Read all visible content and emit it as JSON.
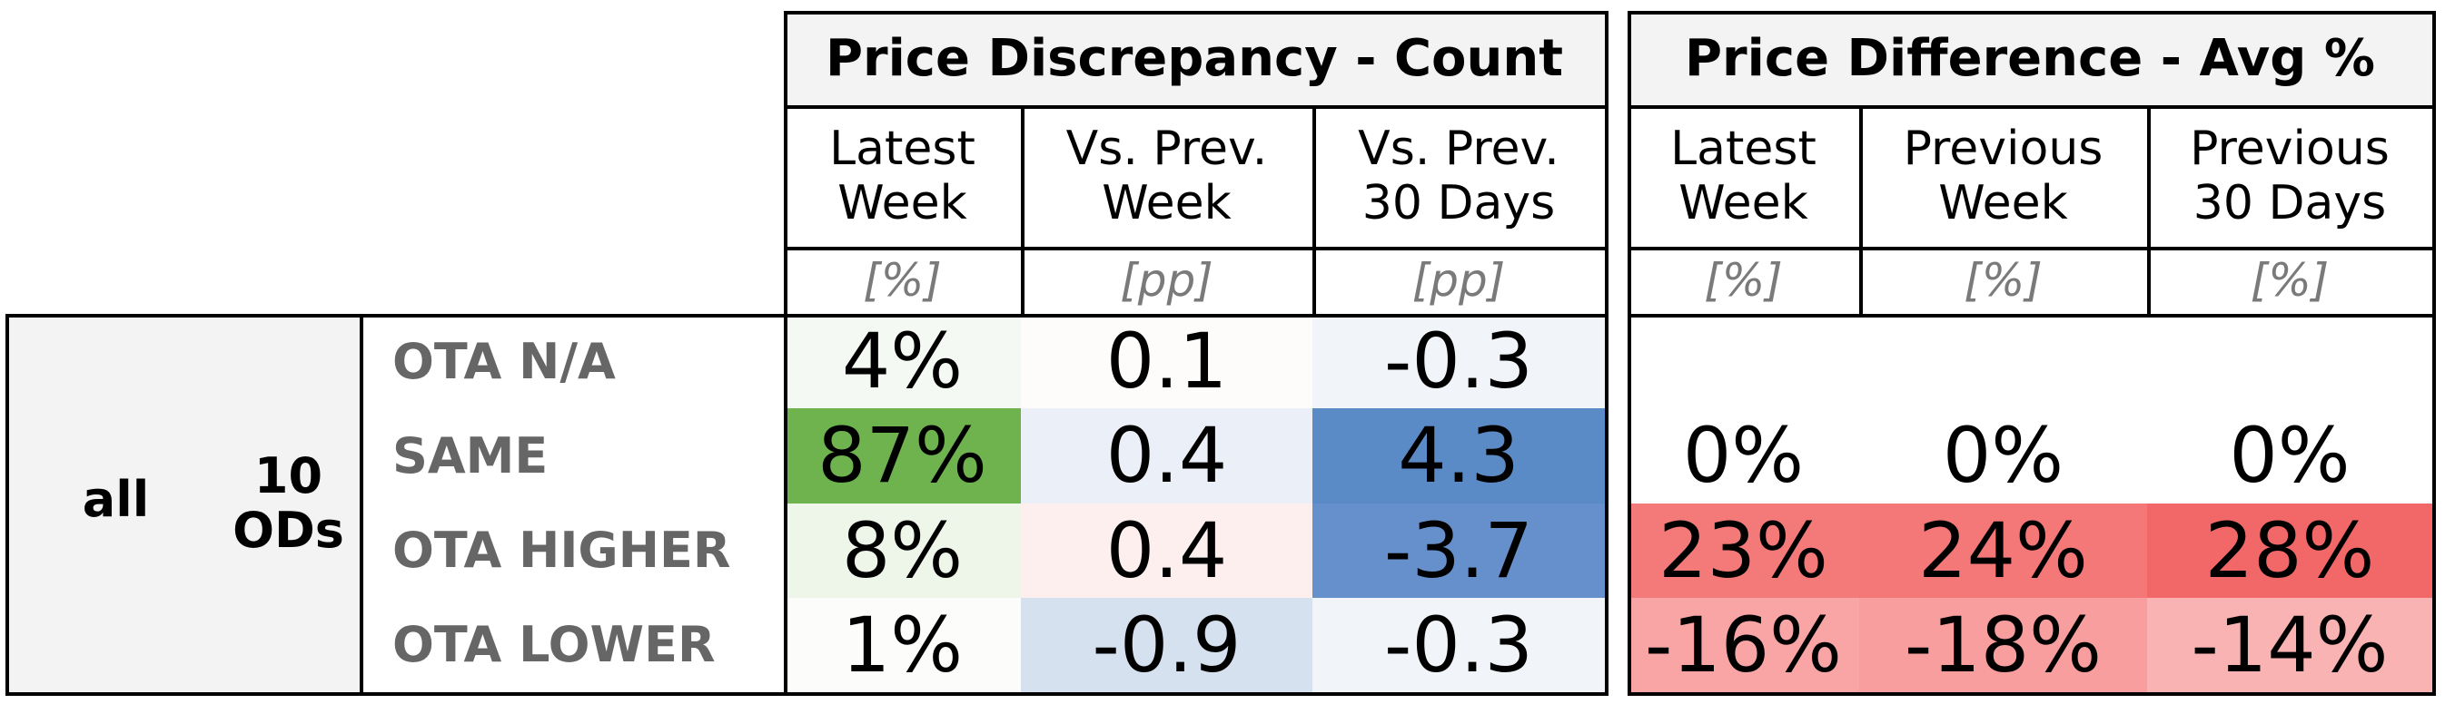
{
  "chart_data": {
    "type": "table",
    "groups": [
      {
        "title": "Price Discrepancy - Count",
        "columns": [
          {
            "label": "Latest\nWeek",
            "unit": "[%]"
          },
          {
            "label": "Vs. Prev.\nWeek",
            "unit": "[pp]"
          },
          {
            "label": "Vs. Prev.\n30 Days",
            "unit": "[pp]"
          }
        ]
      },
      {
        "title": "Price Difference - Avg %",
        "columns": [
          {
            "label": "Latest\nWeek",
            "unit": "[%]"
          },
          {
            "label": "Previous\nWeek",
            "unit": "[%]"
          },
          {
            "label": "Previous\n30 Days",
            "unit": "[%]"
          }
        ]
      }
    ],
    "segment": {
      "label": "all",
      "sublabel": "10\nODs"
    },
    "rows": [
      {
        "label": "OTA N/A",
        "count": [
          "4%",
          "0.1",
          "-0.3"
        ],
        "avg": [
          "",
          "",
          ""
        ],
        "count_colors": [
          "#f5f9f3",
          "#fdfcfb",
          "#f1f4f9"
        ],
        "avg_colors": [
          "#ffffff",
          "#ffffff",
          "#ffffff"
        ]
      },
      {
        "label": "SAME",
        "count": [
          "87%",
          "0.4",
          "4.3"
        ],
        "avg": [
          "0%",
          "0%",
          "0%"
        ],
        "count_colors": [
          "#6fb34f",
          "#ebf0f8",
          "#5b8bc6"
        ],
        "avg_colors": [
          "#ffffff",
          "#ffffff",
          "#ffffff"
        ]
      },
      {
        "label": "OTA HIGHER",
        "count": [
          "8%",
          "0.4",
          "-3.7"
        ],
        "avg": [
          "23%",
          "24%",
          "28%"
        ],
        "count_colors": [
          "#eef6ea",
          "#fcefee",
          "#6590cb"
        ],
        "avg_colors": [
          "#f47a7a",
          "#f47878",
          "#f26868"
        ]
      },
      {
        "label": "OTA LOWER",
        "count": [
          "1%",
          "-0.9",
          "-0.3"
        ],
        "avg": [
          "-16%",
          "-18%",
          "-14%"
        ],
        "count_colors": [
          "#fcfdfb",
          "#d6e1ef",
          "#f1f4f9"
        ],
        "avg_colors": [
          "#f9a5a5",
          "#f89e9e",
          "#fab3b3"
        ]
      }
    ]
  }
}
